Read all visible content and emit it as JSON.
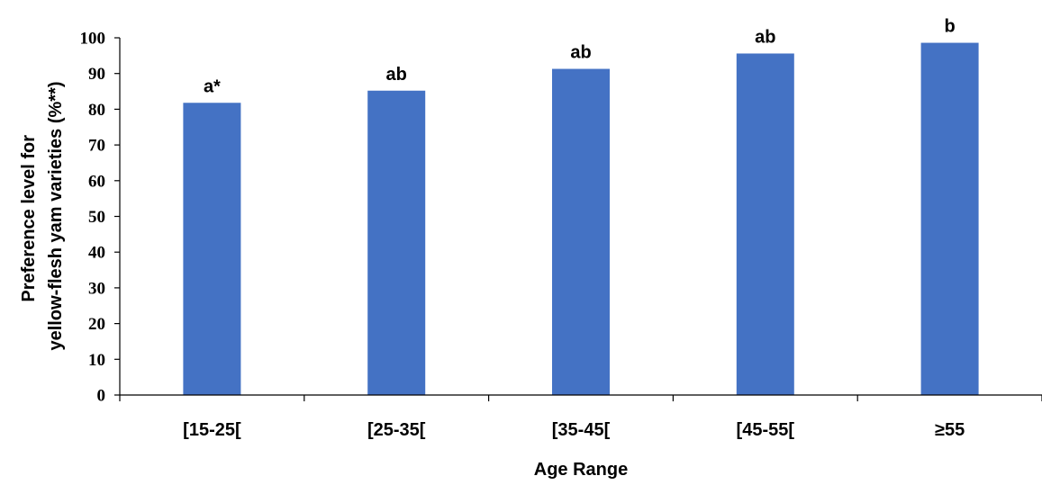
{
  "chart_data": {
    "type": "bar",
    "title": "",
    "xlabel": "Age Range",
    "ylabel_lines": [
      "Preference level for",
      "yellow-flesh yam varieties (%**)"
    ],
    "categories": [
      "[15-25[",
      "[25-35[",
      "[35-45[",
      "[45-55[",
      "≥55"
    ],
    "values": [
      81.8,
      85.2,
      91.3,
      95.6,
      98.6
    ],
    "bar_labels": [
      "a*",
      "ab",
      "ab",
      "ab",
      "b"
    ],
    "ylim": [
      0,
      100
    ],
    "yticks": [
      0,
      10,
      20,
      30,
      40,
      50,
      60,
      70,
      80,
      90,
      100
    ],
    "grid": false,
    "legend": "none",
    "bar_color": "#4472C4"
  }
}
